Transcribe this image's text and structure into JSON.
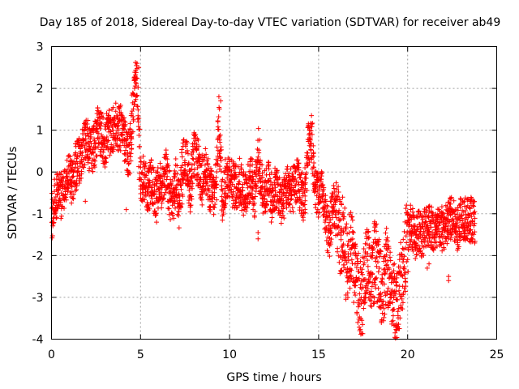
{
  "chart_data": {
    "type": "scatter",
    "title": "Day 185 of 2018, Sidereal Day-to-day VTEC variation (SDTVAR) for receiver ab49",
    "xlabel": "GPS time / hours",
    "ylabel": "SDTVAR / TECUs",
    "xlim": [
      0,
      25
    ],
    "ylim": [
      -4,
      3
    ],
    "xticks": [
      0,
      5,
      10,
      15,
      20,
      25
    ],
    "yticks": [
      -4,
      -3,
      -2,
      -1,
      0,
      1,
      2,
      3
    ],
    "grid": true,
    "marker": "+",
    "color": "#ff0000",
    "trend": [
      [
        0.0,
        -1.1
      ],
      [
        0.2,
        -0.6
      ],
      [
        0.4,
        -0.5
      ],
      [
        0.6,
        -0.6
      ],
      [
        0.8,
        -0.2
      ],
      [
        1.0,
        0.0
      ],
      [
        1.2,
        -0.3
      ],
      [
        1.4,
        0.2
      ],
      [
        1.6,
        0.3
      ],
      [
        1.8,
        0.6
      ],
      [
        2.0,
        0.8
      ],
      [
        2.2,
        0.5
      ],
      [
        2.4,
        0.6
      ],
      [
        2.6,
        1.0
      ],
      [
        2.8,
        0.9
      ],
      [
        3.0,
        0.6
      ],
      [
        3.2,
        0.9
      ],
      [
        3.4,
        1.0
      ],
      [
        3.6,
        1.1
      ],
      [
        3.8,
        1.0
      ],
      [
        4.0,
        1.2
      ],
      [
        4.2,
        0.4
      ],
      [
        4.4,
        0.5
      ],
      [
        4.6,
        1.7
      ],
      [
        4.8,
        2.3
      ],
      [
        5.0,
        -0.3
      ],
      [
        5.2,
        -0.1
      ],
      [
        5.4,
        -0.5
      ],
      [
        5.6,
        -0.2
      ],
      [
        5.8,
        -0.6
      ],
      [
        6.0,
        -0.4
      ],
      [
        6.2,
        -0.3
      ],
      [
        6.4,
        0.0
      ],
      [
        6.6,
        -0.5
      ],
      [
        6.8,
        -0.7
      ],
      [
        7.0,
        -0.2
      ],
      [
        7.2,
        -0.8
      ],
      [
        7.4,
        0.3
      ],
      [
        7.6,
        0.2
      ],
      [
        7.8,
        -0.5
      ],
      [
        8.0,
        0.4
      ],
      [
        8.2,
        0.3
      ],
      [
        8.4,
        -0.4
      ],
      [
        8.6,
        0.2
      ],
      [
        8.8,
        -0.3
      ],
      [
        9.0,
        -0.5
      ],
      [
        9.2,
        -0.6
      ],
      [
        9.4,
        1.3
      ],
      [
        9.6,
        -0.7
      ],
      [
        9.8,
        -0.2
      ],
      [
        10.0,
        0.0
      ],
      [
        10.2,
        -0.3
      ],
      [
        10.4,
        -0.4
      ],
      [
        10.6,
        -0.2
      ],
      [
        10.8,
        -0.5
      ],
      [
        11.0,
        -0.4
      ],
      [
        11.2,
        -0.1
      ],
      [
        11.4,
        -0.6
      ],
      [
        11.6,
        0.5
      ],
      [
        11.8,
        -0.4
      ],
      [
        12.0,
        -0.5
      ],
      [
        12.2,
        -0.2
      ],
      [
        12.4,
        -0.8
      ],
      [
        12.6,
        -0.3
      ],
      [
        12.8,
        -0.6
      ],
      [
        13.0,
        -0.8
      ],
      [
        13.2,
        -0.3
      ],
      [
        13.4,
        -0.5
      ],
      [
        13.6,
        -0.4
      ],
      [
        13.8,
        -0.2
      ],
      [
        14.0,
        -0.5
      ],
      [
        14.2,
        -0.7
      ],
      [
        14.4,
        0.7
      ],
      [
        14.6,
        0.9
      ],
      [
        14.8,
        -0.4
      ],
      [
        15.0,
        -0.6
      ],
      [
        15.2,
        -0.5
      ],
      [
        15.4,
        -1.2
      ],
      [
        15.6,
        -1.5
      ],
      [
        15.8,
        -0.8
      ],
      [
        16.0,
        -1.0
      ],
      [
        16.2,
        -1.6
      ],
      [
        16.4,
        -1.4
      ],
      [
        16.6,
        -2.4
      ],
      [
        16.8,
        -1.6
      ],
      [
        17.0,
        -2.3
      ],
      [
        17.2,
        -2.6
      ],
      [
        17.4,
        -3.2
      ],
      [
        17.6,
        -2.4
      ],
      [
        17.8,
        -2.1
      ],
      [
        18.0,
        -2.6
      ],
      [
        18.2,
        -2.0
      ],
      [
        18.4,
        -2.5
      ],
      [
        18.6,
        -2.9
      ],
      [
        18.8,
        -2.2
      ],
      [
        19.0,
        -2.6
      ],
      [
        19.2,
        -3.0
      ],
      [
        19.4,
        -3.3
      ],
      [
        19.6,
        -2.6
      ],
      [
        19.8,
        -2.2
      ],
      [
        20.0,
        -1.5
      ],
      [
        20.2,
        -1.3
      ],
      [
        20.4,
        -1.6
      ],
      [
        20.6,
        -1.4
      ],
      [
        20.8,
        -1.5
      ],
      [
        21.0,
        -1.3
      ],
      [
        21.2,
        -1.2
      ],
      [
        21.4,
        -1.4
      ],
      [
        21.6,
        -1.5
      ],
      [
        21.8,
        -1.3
      ],
      [
        22.0,
        -1.4
      ],
      [
        22.2,
        -1.3
      ],
      [
        22.4,
        -1.1
      ],
      [
        22.6,
        -1.2
      ],
      [
        22.8,
        -1.4
      ],
      [
        23.0,
        -1.0
      ],
      [
        23.2,
        -1.1
      ],
      [
        23.4,
        -1.2
      ],
      [
        23.6,
        -1.1
      ],
      [
        23.8,
        -1.2
      ]
    ],
    "outliers": [
      [
        9.4,
        1.8
      ],
      [
        9.5,
        1.7
      ],
      [
        4.8,
        2.6
      ],
      [
        4.9,
        2.5
      ],
      [
        14.6,
        1.35
      ],
      [
        11.6,
        -1.45
      ],
      [
        11.6,
        -1.6
      ],
      [
        16.3,
        -1.8
      ],
      [
        16.4,
        -2.0
      ],
      [
        22.3,
        -2.5
      ],
      [
        22.3,
        -2.6
      ],
      [
        21.2,
        -2.2
      ],
      [
        21.1,
        -2.3
      ],
      [
        17.2,
        -3.6
      ],
      [
        19.5,
        -3.75
      ],
      [
        2.9,
        1.3
      ],
      [
        3.1,
        1.4
      ],
      [
        4.2,
        -0.9
      ],
      [
        1.9,
        -0.7
      ],
      [
        5.9,
        -1.2
      ]
    ]
  }
}
